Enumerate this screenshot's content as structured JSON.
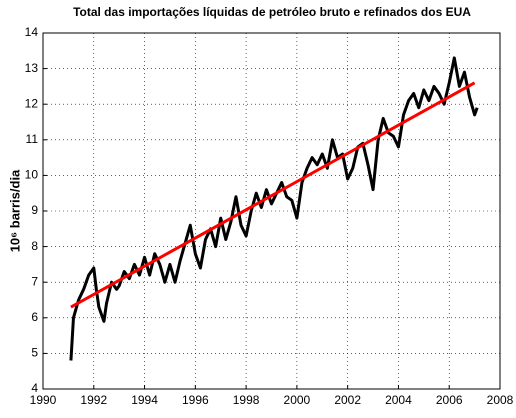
{
  "chart_data": {
    "type": "line",
    "title": "Total das importações líquidas de petróleo bruto e refinados dos EUA",
    "ylabel": "10⁶ barris/dia",
    "xlim": [
      1990,
      2008
    ],
    "xticks": [
      1990,
      1992,
      1994,
      1996,
      1998,
      2000,
      2002,
      2004,
      2006,
      2008
    ],
    "ylim": [
      4,
      14
    ],
    "yticks": [
      4,
      5,
      6,
      7,
      8,
      9,
      10,
      11,
      12,
      13,
      14
    ],
    "grid": true,
    "series": [
      {
        "color": "#000000",
        "x": [
          1991.1,
          1991.2,
          1991.4,
          1991.6,
          1991.8,
          1992.0,
          1992.1,
          1992.2,
          1992.4,
          1992.5,
          1992.7,
          1992.9,
          1993.0,
          1993.2,
          1993.4,
          1993.6,
          1993.8,
          1994.0,
          1994.2,
          1994.4,
          1994.6,
          1994.8,
          1995.0,
          1995.2,
          1995.4,
          1995.6,
          1995.8,
          1996.0,
          1996.2,
          1996.4,
          1996.6,
          1996.8,
          1997.0,
          1997.2,
          1997.4,
          1997.6,
          1997.8,
          1998.0,
          1998.2,
          1998.4,
          1998.6,
          1998.8,
          1999.0,
          1999.2,
          1999.4,
          1999.6,
          1999.8,
          2000.0,
          2000.2,
          2000.4,
          2000.6,
          2000.8,
          2001.0,
          2001.2,
          2001.4,
          2001.6,
          2001.8,
          2002.0,
          2002.2,
          2002.4,
          2002.6,
          2002.8,
          2003.0,
          2003.2,
          2003.4,
          2003.6,
          2003.8,
          2004.0,
          2004.2,
          2004.4,
          2004.6,
          2004.8,
          2005.0,
          2005.2,
          2005.4,
          2005.6,
          2005.8,
          2006.0,
          2006.2,
          2006.4,
          2006.6,
          2006.8,
          2007.0,
          2007.1
        ],
        "values": [
          4.8,
          6.0,
          6.5,
          6.8,
          7.2,
          7.4,
          6.8,
          6.3,
          5.9,
          6.4,
          7.0,
          6.8,
          6.9,
          7.3,
          7.1,
          7.5,
          7.2,
          7.7,
          7.2,
          7.8,
          7.5,
          7.0,
          7.5,
          7.0,
          7.6,
          8.1,
          8.6,
          7.8,
          7.4,
          8.2,
          8.5,
          8.0,
          8.8,
          8.2,
          8.7,
          9.4,
          8.6,
          8.3,
          9.0,
          9.5,
          9.1,
          9.6,
          9.2,
          9.5,
          9.8,
          9.4,
          9.3,
          8.8,
          9.8,
          10.2,
          10.5,
          10.3,
          10.6,
          10.2,
          11.0,
          10.5,
          10.6,
          9.9,
          10.2,
          10.8,
          10.9,
          10.3,
          9.6,
          11.0,
          11.6,
          11.2,
          11.1,
          10.8,
          11.7,
          12.1,
          12.3,
          11.9,
          12.4,
          12.1,
          12.5,
          12.3,
          12.0,
          12.6,
          13.3,
          12.5,
          12.9,
          12.2,
          11.7,
          11.9
        ]
      },
      {
        "color": "#ff0000",
        "x": [
          1991.1,
          2007.0
        ],
        "values": [
          6.3,
          12.6
        ]
      }
    ]
  }
}
